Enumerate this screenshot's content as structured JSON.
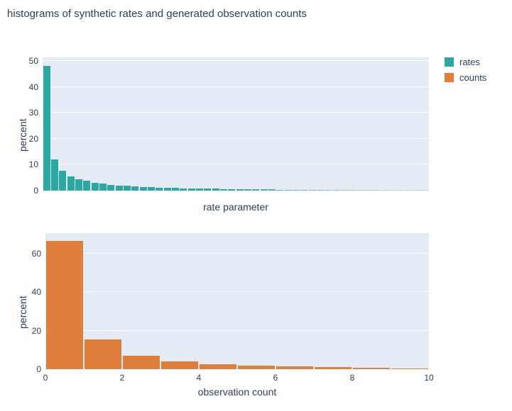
{
  "title": "histograms of synthetic rates and generated observation counts",
  "colors": {
    "rates": "#2ca8a2",
    "counts": "#e07f3c",
    "plot_background": "#e5ecf6",
    "gridline": "#ffffff",
    "text": "#2a3f5f"
  },
  "legend": {
    "items": [
      {
        "label": "rates",
        "color": "#2ca8a2"
      },
      {
        "label": "counts",
        "color": "#e07f3c"
      }
    ]
  },
  "chart_data": [
    {
      "type": "bar",
      "name": "rates",
      "title": "",
      "xlabel": "rate parameter",
      "ylabel": "percent",
      "yticks": [
        0,
        10,
        20,
        30,
        40,
        50
      ],
      "ylim": [
        0,
        51.4
      ],
      "xticks": [],
      "color": "#2ca8a2",
      "values": [
        48,
        12,
        7.7,
        5.5,
        4.3,
        3.7,
        3.1,
        2.7,
        2.3,
        2.0,
        1.8,
        1.6,
        1.45,
        1.3,
        1.2,
        1.1,
        1.0,
        0.92,
        0.85,
        0.8,
        0.74,
        0.7,
        0.65,
        0.6,
        0.56,
        0.52,
        0.49,
        0.46,
        0.43,
        0.4,
        0.38,
        0.36,
        0.34,
        0.32,
        0.3,
        0.28,
        0.27,
        0.25,
        0.24,
        0.23,
        0.21,
        0.2,
        0.19,
        0.18,
        0.17,
        0.16,
        0.15,
        0.14
      ]
    },
    {
      "type": "bar",
      "name": "counts",
      "title": "",
      "xlabel": "observation count",
      "ylabel": "percent",
      "yticks": [
        0,
        20,
        40,
        60
      ],
      "ylim": [
        0,
        70.6
      ],
      "xticks": [
        0,
        2,
        4,
        6,
        8,
        10
      ],
      "xlim": [
        0,
        10
      ],
      "color": "#e07f3c",
      "values": [
        66.5,
        15.5,
        7.0,
        4.0,
        2.6,
        2.0,
        1.4,
        1.0,
        0.8,
        0.5
      ]
    }
  ]
}
